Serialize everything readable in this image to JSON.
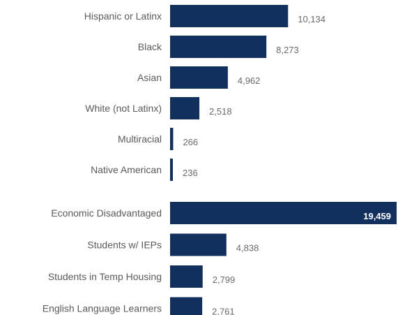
{
  "chart_data": [
    {
      "type": "bar",
      "orientation": "horizontal",
      "title": "",
      "xlabel": "",
      "ylabel": "",
      "categories": [
        "Hispanic or Latinx",
        "Black",
        "Asian",
        "White (not Latinx)",
        "Multiracial",
        "Native American"
      ],
      "values": [
        10134,
        8273,
        4962,
        2518,
        266,
        236
      ],
      "value_labels": [
        "10,134",
        "8,273",
        "4,962",
        "2,518",
        "266",
        "236"
      ],
      "xlim": [
        0,
        19459
      ],
      "grid": false,
      "bar_color": "#12305e"
    },
    {
      "type": "bar",
      "orientation": "horizontal",
      "title": "",
      "xlabel": "",
      "ylabel": "",
      "categories": [
        "Economic Disadvantaged",
        "Students w/ IEPs",
        "Students in Temp Housing",
        "English Language Learners"
      ],
      "values": [
        19459,
        4838,
        2799,
        2761
      ],
      "value_labels": [
        "19,459",
        "4,838",
        "2,799",
        "2,761"
      ],
      "xlim": [
        0,
        19459
      ],
      "grid": false,
      "bar_color": "#12305e"
    }
  ]
}
